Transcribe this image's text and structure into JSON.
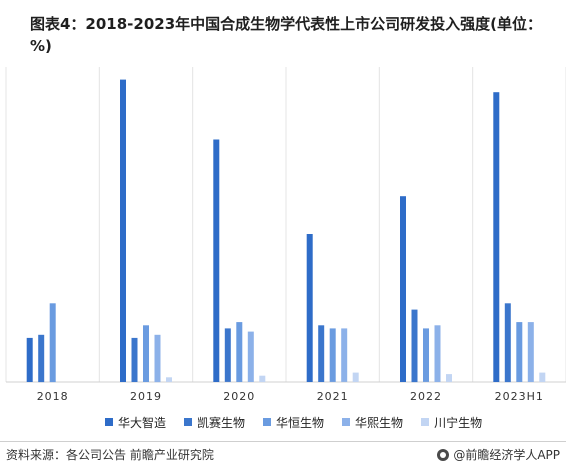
{
  "chart_data": {
    "type": "bar",
    "title": "图表4：2018-2023年中国合成生物学代表性上市公司研发投入强度(单位：%)",
    "categories": [
      "2018",
      "2019",
      "2020",
      "2021",
      "2022",
      "2023H1"
    ],
    "series": [
      {
        "name": "华大智造",
        "color": "#2e6cc8",
        "values": [
          14,
          96,
          77,
          47,
          59,
          92
        ]
      },
      {
        "name": "凯赛生物",
        "color": "#3b76cc",
        "values": [
          15,
          14,
          17,
          18,
          23,
          25
        ]
      },
      {
        "name": "华恒生物",
        "color": "#6a9be0",
        "values": [
          25,
          18,
          19,
          17,
          17,
          19
        ]
      },
      {
        "name": "华熙生物",
        "color": "#8cb1e9",
        "values": [
          0,
          15,
          16,
          17,
          18,
          19
        ]
      },
      {
        "name": "川宁生物",
        "color": "#c2d5f3",
        "values": [
          0,
          1.5,
          2,
          3,
          2.5,
          3
        ]
      }
    ],
    "ylim": [
      0,
      100
    ],
    "grid": false,
    "legend": "bottom"
  },
  "footer": {
    "source": "资料来源：各公司公告 前瞻产业研究院",
    "brand": "@前瞻经济学人APP"
  }
}
